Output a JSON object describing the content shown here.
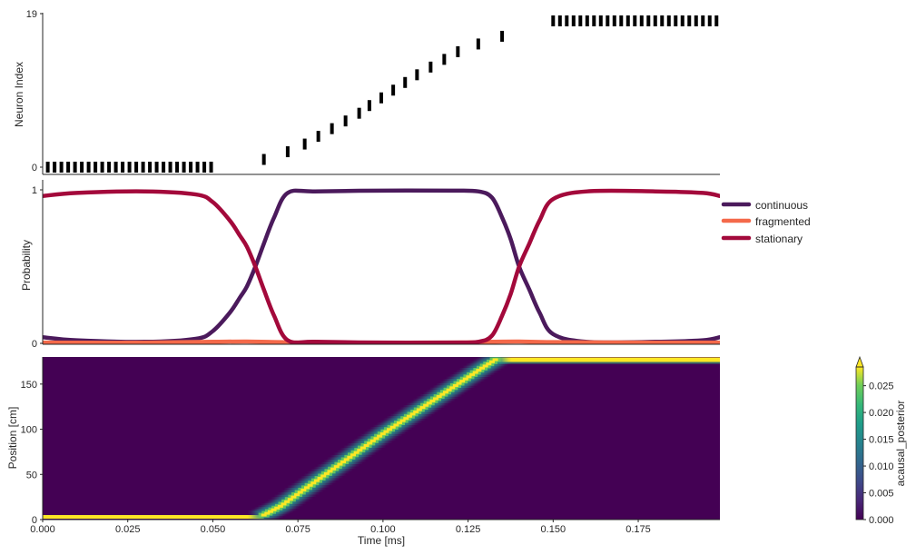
{
  "chart_data": [
    {
      "type": "raster",
      "panel": "spikes",
      "ylabel": "Neuron Index",
      "yticks": [
        0,
        19
      ],
      "ytick_labels": [
        "0",
        "19"
      ],
      "ylim": [
        0,
        19
      ],
      "xlim": [
        0,
        0.199
      ],
      "spike_color": "#000000",
      "trains": [
        {
          "neuron": 0,
          "start": 0.0015,
          "end": 0.0505,
          "step": 0.002
        },
        {
          "neuron": 19,
          "start": 0.15,
          "end": 0.198,
          "step": 0.002
        }
      ],
      "ramp_spikes": [
        {
          "t": 0.065,
          "neuron": 1
        },
        {
          "t": 0.072,
          "neuron": 2
        },
        {
          "t": 0.077,
          "neuron": 3
        },
        {
          "t": 0.081,
          "neuron": 4
        },
        {
          "t": 0.085,
          "neuron": 5
        },
        {
          "t": 0.089,
          "neuron": 6
        },
        {
          "t": 0.093,
          "neuron": 7
        },
        {
          "t": 0.096,
          "neuron": 8
        },
        {
          "t": 0.0995,
          "neuron": 9
        },
        {
          "t": 0.103,
          "neuron": 10
        },
        {
          "t": 0.1065,
          "neuron": 11
        },
        {
          "t": 0.11,
          "neuron": 12
        },
        {
          "t": 0.114,
          "neuron": 13
        },
        {
          "t": 0.118,
          "neuron": 14
        },
        {
          "t": 0.122,
          "neuron": 15
        },
        {
          "t": 0.128,
          "neuron": 16
        },
        {
          "t": 0.135,
          "neuron": 17
        }
      ]
    },
    {
      "type": "line",
      "panel": "probability",
      "ylabel": "Probability",
      "yticks": [
        0,
        1
      ],
      "ytick_labels": [
        "0",
        "1"
      ],
      "ylim": [
        0,
        1
      ],
      "xlim": [
        0,
        0.199
      ],
      "legend_position": "right",
      "series": [
        {
          "name": "continuous",
          "color": "#4b1a5c",
          "x": [
            0,
            0.01,
            0.03,
            0.045,
            0.05,
            0.055,
            0.058,
            0.06,
            0.0625,
            0.065,
            0.068,
            0.072,
            0.08,
            0.1,
            0.12,
            0.128,
            0.132,
            0.135,
            0.1375,
            0.14,
            0.143,
            0.146,
            0.15,
            0.16,
            0.18,
            0.194,
            0.199
          ],
          "y": [
            0.04,
            0.02,
            0.01,
            0.03,
            0.08,
            0.2,
            0.3,
            0.37,
            0.5,
            0.65,
            0.82,
            0.98,
            0.99,
            0.995,
            0.995,
            0.99,
            0.95,
            0.82,
            0.68,
            0.5,
            0.35,
            0.2,
            0.06,
            0.01,
            0.01,
            0.02,
            0.04
          ]
        },
        {
          "name": "fragmented",
          "color": "#f4694a",
          "x": [
            0,
            0.03,
            0.05,
            0.06,
            0.07,
            0.08,
            0.12,
            0.13,
            0.14,
            0.15,
            0.18,
            0.199
          ],
          "y": [
            0.005,
            0.005,
            0.01,
            0.012,
            0.008,
            0.005,
            0.005,
            0.01,
            0.012,
            0.008,
            0.005,
            0.005
          ]
        },
        {
          "name": "stationary",
          "color": "#a3093b",
          "x": [
            0,
            0.01,
            0.03,
            0.045,
            0.05,
            0.055,
            0.058,
            0.06,
            0.0625,
            0.065,
            0.068,
            0.072,
            0.08,
            0.1,
            0.12,
            0.128,
            0.132,
            0.135,
            0.1375,
            0.14,
            0.143,
            0.146,
            0.15,
            0.16,
            0.18,
            0.194,
            0.199
          ],
          "y": [
            0.96,
            0.98,
            0.99,
            0.97,
            0.92,
            0.8,
            0.7,
            0.63,
            0.5,
            0.35,
            0.18,
            0.02,
            0.01,
            0.005,
            0.005,
            0.01,
            0.05,
            0.18,
            0.32,
            0.5,
            0.65,
            0.8,
            0.94,
            0.99,
            0.99,
            0.98,
            0.96
          ]
        }
      ]
    },
    {
      "type": "heatmap",
      "panel": "posterior",
      "xlabel": "Time [ms]",
      "ylabel": "Position [cm]",
      "xticks": [
        0,
        0.025,
        0.05,
        0.075,
        0.1,
        0.125,
        0.15,
        0.175
      ],
      "xtick_labels": [
        "0.000",
        "0.025",
        "0.050",
        "0.075",
        "0.100",
        "0.125",
        "0.150",
        "0.175"
      ],
      "yticks": [
        0,
        50,
        100,
        150
      ],
      "ytick_labels": [
        "0",
        "50",
        "100",
        "150"
      ],
      "xlim": [
        0,
        0.199
      ],
      "ylim": [
        0,
        180
      ],
      "background_color": "#440154",
      "track_start_position": 3,
      "track_end_position": 177,
      "trajectory": {
        "t": [
          0.065,
          0.07,
          0.1,
          0.128,
          0.133
        ],
        "position": [
          5,
          15,
          95,
          165,
          177
        ]
      },
      "colorbar": {
        "label": "acausal_posterior",
        "ticks": [
          0.0,
          0.005,
          0.01,
          0.015,
          0.02,
          0.025
        ],
        "tick_labels": [
          "0.000",
          "0.005",
          "0.010",
          "0.015",
          "0.020",
          "0.025"
        ],
        "vmin": 0,
        "vmax": 0.0285,
        "extend": "max",
        "colormap": "viridis"
      }
    }
  ]
}
